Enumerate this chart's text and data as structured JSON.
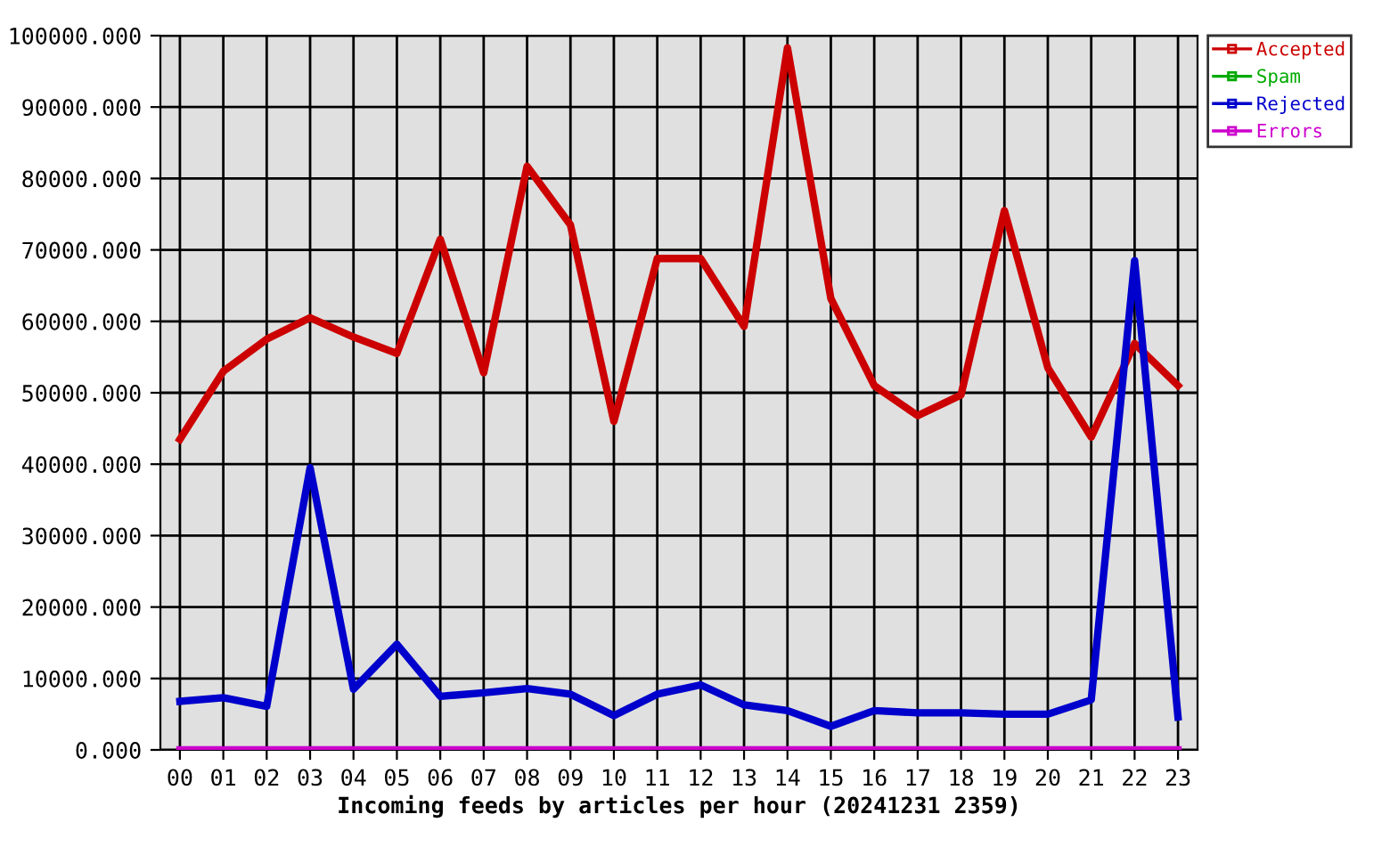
{
  "chart_data": {
    "type": "line",
    "xlabel": "Incoming feeds by articles per hour (20241231 2359)",
    "categories": [
      "00",
      "01",
      "02",
      "03",
      "04",
      "05",
      "06",
      "07",
      "08",
      "09",
      "10",
      "11",
      "12",
      "13",
      "14",
      "15",
      "16",
      "17",
      "18",
      "19",
      "20",
      "21",
      "22",
      "23"
    ],
    "series": [
      {
        "name": "Accepted",
        "color": "#cc0000",
        "values": [
          43500,
          53000,
          57500,
          60500,
          57800,
          55500,
          71500,
          52800,
          81700,
          73500,
          46000,
          68800,
          68800,
          59300,
          98300,
          63200,
          51000,
          46800,
          49700,
          75500,
          53500,
          43800,
          56900,
          51000
        ]
      },
      {
        "name": "Spam",
        "color": "#00aa00",
        "values": [
          null,
          null,
          null,
          null,
          null,
          null,
          null,
          null,
          null,
          null,
          null,
          null,
          null,
          null,
          null,
          null,
          null,
          null,
          null,
          null,
          null,
          null,
          null,
          null
        ]
      },
      {
        "name": "Rejected",
        "color": "#0000cc",
        "values": [
          6800,
          7300,
          6100,
          39500,
          8500,
          14800,
          7500,
          8000,
          8600,
          7800,
          4800,
          7800,
          9100,
          6300,
          5500,
          3300,
          5500,
          5200,
          5200,
          5000,
          5000,
          7000,
          68500,
          4600
        ]
      },
      {
        "name": "Errors",
        "color": "#cc00cc",
        "values": [
          0,
          0,
          0,
          0,
          0,
          0,
          0,
          0,
          0,
          0,
          0,
          0,
          0,
          0,
          0,
          0,
          0,
          0,
          0,
          0,
          0,
          0,
          0,
          0
        ]
      }
    ],
    "ylim": [
      0,
      100000
    ],
    "yticks": [
      {
        "value": 0,
        "label": "0.000"
      },
      {
        "value": 10000,
        "label": "10000.000"
      },
      {
        "value": 20000,
        "label": "20000.000"
      },
      {
        "value": 30000,
        "label": "30000.000"
      },
      {
        "value": 40000,
        "label": "40000.000"
      },
      {
        "value": 50000,
        "label": "50000.000"
      },
      {
        "value": 60000,
        "label": "60000.000"
      },
      {
        "value": 70000,
        "label": "70000.000"
      },
      {
        "value": 80000,
        "label": "80000.000"
      },
      {
        "value": 90000,
        "label": "90000.000"
      },
      {
        "value": 100000,
        "label": "100000.000"
      }
    ],
    "grid": true,
    "legend": "top right",
    "line_style": "solid"
  }
}
